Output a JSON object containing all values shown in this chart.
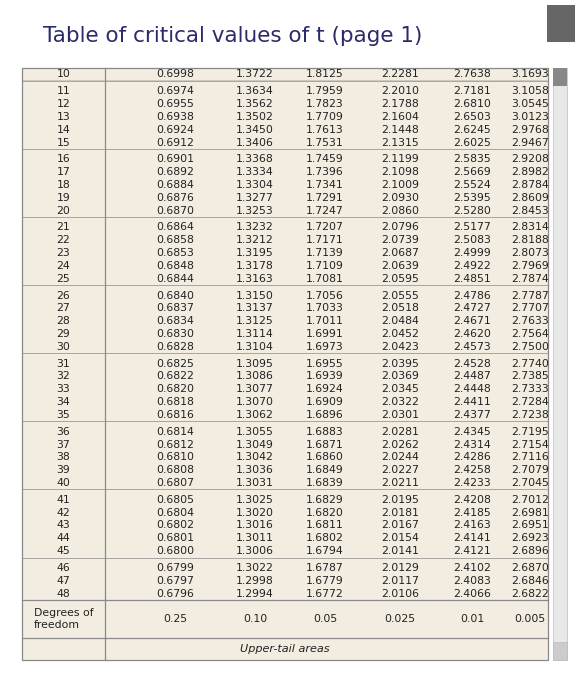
{
  "title": "Table of critical values of t (page 1)",
  "title_color": "#2b2b6b",
  "title_fontsize": 15.5,
  "bg_color": "#f2ede0",
  "border_color": "#888888",
  "text_color": "#222222",
  "footer_note": "Upper-tail areas",
  "col_headers": [
    "0.25",
    "0.10",
    "0.05",
    "0.025",
    "0.01",
    "0.005"
  ],
  "rows": [
    [
      10,
      0.6998,
      1.3722,
      1.8125,
      2.2281,
      2.7638,
      3.1693
    ],
    [
      11,
      0.6974,
      1.3634,
      1.7959,
      2.201,
      2.7181,
      3.1058
    ],
    [
      12,
      0.6955,
      1.3562,
      1.7823,
      2.1788,
      2.681,
      3.0545
    ],
    [
      13,
      0.6938,
      1.3502,
      1.7709,
      2.1604,
      2.6503,
      3.0123
    ],
    [
      14,
      0.6924,
      1.345,
      1.7613,
      2.1448,
      2.6245,
      2.9768
    ],
    [
      15,
      0.6912,
      1.3406,
      1.7531,
      2.1315,
      2.6025,
      2.9467
    ],
    [
      16,
      0.6901,
      1.3368,
      1.7459,
      2.1199,
      2.5835,
      2.9208
    ],
    [
      17,
      0.6892,
      1.3334,
      1.7396,
      2.1098,
      2.5669,
      2.8982
    ],
    [
      18,
      0.6884,
      1.3304,
      1.7341,
      2.1009,
      2.5524,
      2.8784
    ],
    [
      19,
      0.6876,
      1.3277,
      1.7291,
      2.093,
      2.5395,
      2.8609
    ],
    [
      20,
      0.687,
      1.3253,
      1.7247,
      2.086,
      2.528,
      2.8453
    ],
    [
      21,
      0.6864,
      1.3232,
      1.7207,
      2.0796,
      2.5177,
      2.8314
    ],
    [
      22,
      0.6858,
      1.3212,
      1.7171,
      2.0739,
      2.5083,
      2.8188
    ],
    [
      23,
      0.6853,
      1.3195,
      1.7139,
      2.0687,
      2.4999,
      2.8073
    ],
    [
      24,
      0.6848,
      1.3178,
      1.7109,
      2.0639,
      2.4922,
      2.7969
    ],
    [
      25,
      0.6844,
      1.3163,
      1.7081,
      2.0595,
      2.4851,
      2.7874
    ],
    [
      26,
      0.684,
      1.315,
      1.7056,
      2.0555,
      2.4786,
      2.7787
    ],
    [
      27,
      0.6837,
      1.3137,
      1.7033,
      2.0518,
      2.4727,
      2.7707
    ],
    [
      28,
      0.6834,
      1.3125,
      1.7011,
      2.0484,
      2.4671,
      2.7633
    ],
    [
      29,
      0.683,
      1.3114,
      1.6991,
      2.0452,
      2.462,
      2.7564
    ],
    [
      30,
      0.6828,
      1.3104,
      1.6973,
      2.0423,
      2.4573,
      2.75
    ],
    [
      31,
      0.6825,
      1.3095,
      1.6955,
      2.0395,
      2.4528,
      2.774
    ],
    [
      32,
      0.6822,
      1.3086,
      1.6939,
      2.0369,
      2.4487,
      2.7385
    ],
    [
      33,
      0.682,
      1.3077,
      1.6924,
      2.0345,
      2.4448,
      2.7333
    ],
    [
      34,
      0.6818,
      1.307,
      1.6909,
      2.0322,
      2.4411,
      2.7284
    ],
    [
      35,
      0.6816,
      1.3062,
      1.6896,
      2.0301,
      2.4377,
      2.7238
    ],
    [
      36,
      0.6814,
      1.3055,
      1.6883,
      2.0281,
      2.4345,
      2.7195
    ],
    [
      37,
      0.6812,
      1.3049,
      1.6871,
      2.0262,
      2.4314,
      2.7154
    ],
    [
      38,
      0.681,
      1.3042,
      1.686,
      2.0244,
      2.4286,
      2.7116
    ],
    [
      39,
      0.6808,
      1.3036,
      1.6849,
      2.0227,
      2.4258,
      2.7079
    ],
    [
      40,
      0.6807,
      1.3031,
      1.6839,
      2.0211,
      2.4233,
      2.7045
    ],
    [
      41,
      0.6805,
      1.3025,
      1.6829,
      2.0195,
      2.4208,
      2.7012
    ],
    [
      42,
      0.6804,
      1.302,
      1.682,
      2.0181,
      2.4185,
      2.6981
    ],
    [
      43,
      0.6802,
      1.3016,
      1.6811,
      2.0167,
      2.4163,
      2.6951
    ],
    [
      44,
      0.6801,
      1.3011,
      1.6802,
      2.0154,
      2.4141,
      2.6923
    ],
    [
      45,
      0.68,
      1.3006,
      1.6794,
      2.0141,
      2.4121,
      2.6896
    ],
    [
      46,
      0.6799,
      1.3022,
      1.6787,
      2.0129,
      2.4102,
      2.687
    ],
    [
      47,
      0.6797,
      1.2998,
      1.6779,
      2.0117,
      2.4083,
      2.6846
    ],
    [
      48,
      0.6796,
      1.2994,
      1.6772,
      2.0106,
      2.4066,
      2.6822
    ]
  ],
  "group_ends": [
    10,
    15,
    20,
    25,
    30,
    35,
    40,
    45
  ],
  "font_size": 7.8,
  "scrollbar_color": "#666666"
}
